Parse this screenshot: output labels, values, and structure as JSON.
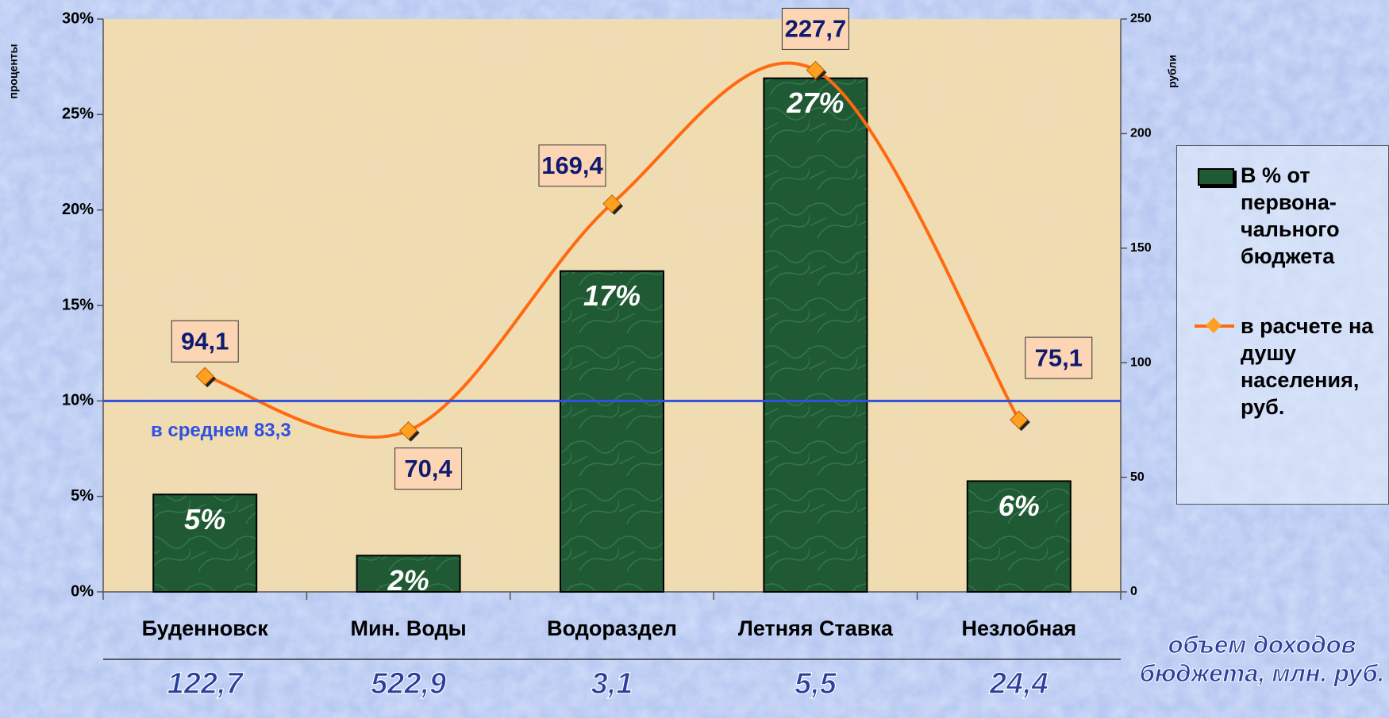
{
  "chart_data": {
    "type": "bar_line",
    "categories": [
      "Буденновск",
      "Мин. Воды",
      "Водораздел",
      "Летняя Ставка",
      "Незлобная"
    ],
    "series": [
      {
        "name": "В % от первона-чального бюджета",
        "type": "bar",
        "color": "#1f5a34",
        "values": [
          5.1,
          1.9,
          16.8,
          26.9,
          5.8
        ],
        "value_labels": [
          "5%",
          "2%",
          "17%",
          "27%",
          "6%"
        ]
      },
      {
        "name": "в расчете на душу населения, руб.",
        "type": "line",
        "axis": "y2",
        "color": "#ff6a10",
        "marker_color": "#ffa020",
        "values": [
          94.1,
          70.4,
          169.4,
          227.7,
          75.1
        ],
        "value_labels": [
          "94,1",
          "70,4",
          "169,4",
          "227,7",
          "75,1"
        ]
      }
    ],
    "ylabel": "проценты",
    "y2label": "рубли",
    "ylim": [
      0,
      30
    ],
    "yticks": [
      {
        "value": 0,
        "label": "0%"
      },
      {
        "value": 5,
        "label": "5%"
      },
      {
        "value": 10,
        "label": "10%"
      },
      {
        "value": 15,
        "label": "15%"
      },
      {
        "value": 20,
        "label": "20%"
      },
      {
        "value": 25,
        "label": "25%"
      },
      {
        "value": 30,
        "label": "30%"
      }
    ],
    "y2lim": [
      0,
      250
    ],
    "y2ticks": [
      0,
      50,
      100,
      150,
      200,
      250
    ],
    "average_line": {
      "value": 83.3,
      "axis": "y2",
      "label": "в среднем 83,3",
      "color": "#3050e0"
    },
    "bottom_row": {
      "title": "объем доходов бюджета, млн. руб.",
      "values": [
        122.7,
        522.9,
        3.1,
        5.5,
        24.4
      ],
      "value_labels": [
        "122,7",
        "522,9",
        "3,1",
        "5,5",
        "24,4"
      ]
    },
    "legend": "right"
  }
}
